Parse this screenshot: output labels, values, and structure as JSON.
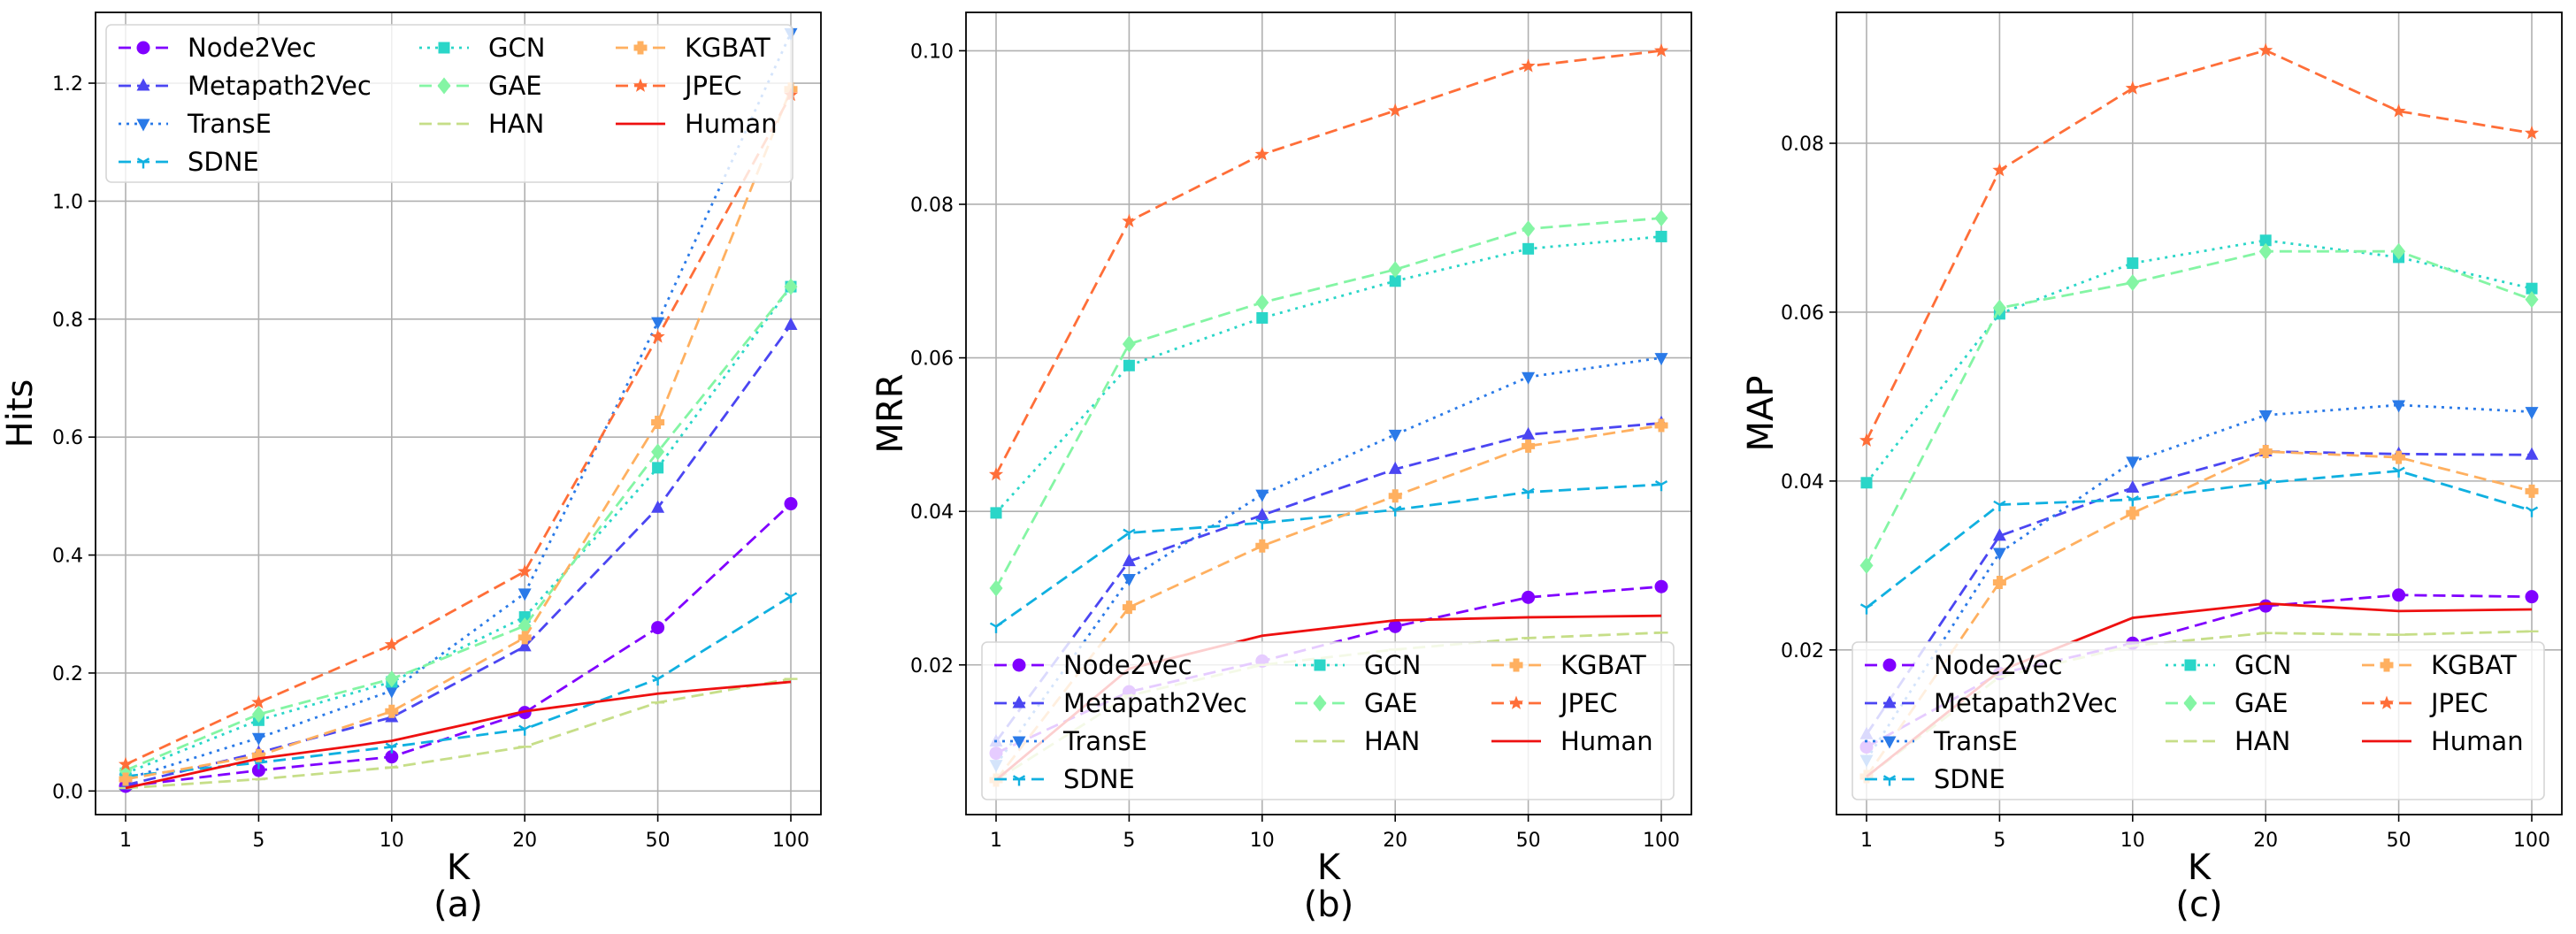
{
  "chart_data": [
    {
      "type": "line",
      "panel_label": "(a)",
      "xlabel": "K",
      "ylabel": "Hits",
      "categories": [
        "1",
        "5",
        "10",
        "20",
        "50",
        "100"
      ],
      "ylim": [
        -0.04,
        1.32
      ],
      "yticks": [
        0.0,
        0.2,
        0.4,
        0.6,
        0.8,
        1.0,
        1.2
      ],
      "ytick_labels": [
        "0.0",
        "0.2",
        "0.4",
        "0.6",
        "0.8",
        "1.0",
        "1.2"
      ],
      "grid": true,
      "legend": "top-left",
      "series": [
        {
          "name": "Node2Vec",
          "values": [
            0.008,
            0.035,
            0.058,
            0.133,
            0.277,
            0.487
          ]
        },
        {
          "name": "Metapath2Vec",
          "values": [
            0.01,
            0.065,
            0.125,
            0.245,
            0.48,
            0.79
          ]
        },
        {
          "name": "TransE",
          "values": [
            0.02,
            0.09,
            0.17,
            0.335,
            0.795,
            1.285
          ]
        },
        {
          "name": "SDNE",
          "values": [
            0.025,
            0.048,
            0.075,
            0.105,
            0.19,
            0.33
          ]
        },
        {
          "name": "GCN",
          "values": [
            0.03,
            0.12,
            0.185,
            0.295,
            0.548,
            0.855
          ]
        },
        {
          "name": "GAE",
          "values": [
            0.035,
            0.13,
            0.19,
            0.28,
            0.575,
            0.855
          ]
        },
        {
          "name": "HAN",
          "values": [
            0.005,
            0.02,
            0.04,
            0.075,
            0.15,
            0.19
          ]
        },
        {
          "name": "KGBAT",
          "values": [
            0.02,
            0.06,
            0.135,
            0.26,
            0.625,
            1.19
          ]
        },
        {
          "name": "JPEC",
          "values": [
            0.045,
            0.15,
            0.248,
            0.372,
            0.77,
            1.18
          ]
        },
        {
          "name": "Human",
          "values": [
            0.005,
            0.055,
            0.085,
            0.135,
            0.165,
            0.185
          ]
        }
      ]
    },
    {
      "type": "line",
      "panel_label": "(b)",
      "xlabel": "K",
      "ylabel": "MRR",
      "categories": [
        "1",
        "5",
        "10",
        "20",
        "50",
        "100"
      ],
      "ylim": [
        0.0005,
        0.105
      ],
      "yticks": [
        0.02,
        0.04,
        0.06,
        0.08,
        0.1
      ],
      "ytick_labels": [
        "0.02",
        "0.04",
        "0.06",
        "0.08",
        "0.10"
      ],
      "grid": true,
      "legend": "lower-right",
      "series": [
        {
          "name": "Node2Vec",
          "values": [
            0.0085,
            0.0165,
            0.0205,
            0.025,
            0.0288,
            0.0302
          ]
        },
        {
          "name": "Metapath2Vec",
          "values": [
            0.01,
            0.0335,
            0.0395,
            0.0455,
            0.05,
            0.0515
          ]
        },
        {
          "name": "TransE",
          "values": [
            0.007,
            0.0312,
            0.0422,
            0.05,
            0.0575,
            0.06
          ]
        },
        {
          "name": "SDNE",
          "values": [
            0.025,
            0.0372,
            0.0385,
            0.0402,
            0.0425,
            0.0435
          ]
        },
        {
          "name": "GCN",
          "values": [
            0.0398,
            0.059,
            0.0652,
            0.07,
            0.0742,
            0.0758
          ]
        },
        {
          "name": "GAE",
          "values": [
            0.03,
            0.0618,
            0.0672,
            0.0715,
            0.0768,
            0.0782
          ]
        },
        {
          "name": "HAN",
          "values": [
            0.005,
            0.016,
            0.02,
            0.022,
            0.0235,
            0.0242
          ]
        },
        {
          "name": "KGBAT",
          "values": [
            0.005,
            0.0275,
            0.0355,
            0.042,
            0.0485,
            0.0512
          ]
        },
        {
          "name": "JPEC",
          "values": [
            0.0448,
            0.0778,
            0.0865,
            0.0922,
            0.098,
            0.1
          ]
        },
        {
          "name": "Human",
          "values": [
            0.005,
            0.0195,
            0.0238,
            0.0258,
            0.0262,
            0.0264
          ]
        }
      ]
    },
    {
      "type": "line",
      "panel_label": "(c)",
      "xlabel": "K",
      "ylabel": "MAP",
      "categories": [
        "1",
        "5",
        "10",
        "20",
        "50",
        "100"
      ],
      "ylim": [
        0.0005,
        0.0955
      ],
      "yticks": [
        0.02,
        0.04,
        0.06,
        0.08
      ],
      "ytick_labels": [
        "0.02",
        "0.04",
        "0.06",
        "0.08"
      ],
      "grid": true,
      "legend": "lower-right",
      "series": [
        {
          "name": "Node2Vec",
          "values": [
            0.0085,
            0.0172,
            0.0208,
            0.0252,
            0.0265,
            0.0263
          ]
        },
        {
          "name": "Metapath2Vec",
          "values": [
            0.01,
            0.0335,
            0.0392,
            0.0435,
            0.0432,
            0.0431
          ]
        },
        {
          "name": "TransE",
          "values": [
            0.007,
            0.0315,
            0.0423,
            0.0478,
            0.049,
            0.0482
          ]
        },
        {
          "name": "SDNE",
          "values": [
            0.025,
            0.0372,
            0.0378,
            0.0398,
            0.0412,
            0.0365
          ]
        },
        {
          "name": "GCN",
          "values": [
            0.0398,
            0.0598,
            0.0658,
            0.0685,
            0.0665,
            0.0628
          ]
        },
        {
          "name": "GAE",
          "values": [
            0.03,
            0.0605,
            0.0635,
            0.0672,
            0.0672,
            0.0615
          ]
        },
        {
          "name": "HAN",
          "values": [
            0.005,
            0.0168,
            0.0205,
            0.022,
            0.0218,
            0.0222
          ]
        },
        {
          "name": "KGBAT",
          "values": [
            0.005,
            0.028,
            0.0362,
            0.0435,
            0.0428,
            0.0388
          ]
        },
        {
          "name": "JPEC",
          "values": [
            0.0448,
            0.0768,
            0.0865,
            0.091,
            0.0838,
            0.0812
          ]
        },
        {
          "name": "Human",
          "values": [
            0.005,
            0.0175,
            0.0238,
            0.0255,
            0.0246,
            0.0248
          ]
        }
      ]
    }
  ],
  "series_styles": [
    {
      "name": "Node2Vec",
      "color": "#8000ff",
      "dash": "14 7",
      "marker": "circle"
    },
    {
      "name": "Metapath2Vec",
      "color": "#4b46f2",
      "dash": "14 7",
      "marker": "triangle-up"
    },
    {
      "name": "TransE",
      "color": "#2a7ae8",
      "dash": "3 6",
      "marker": "triangle-down"
    },
    {
      "name": "SDNE",
      "color": "#10b0e0",
      "dash": "14 7",
      "marker": "tri"
    },
    {
      "name": "GCN",
      "color": "#2ad6c8",
      "dash": "3 6",
      "marker": "square"
    },
    {
      "name": "GAE",
      "color": "#84f5a4",
      "dash": "14 7",
      "marker": "diamond"
    },
    {
      "name": "HAN",
      "color": "#c6de88",
      "dash": "14 7",
      "marker": "hline"
    },
    {
      "name": "KGBAT",
      "color": "#ffb060",
      "dash": "14 7",
      "marker": "plus-filled"
    },
    {
      "name": "JPEC",
      "color": "#ff6e38",
      "dash": "14 7",
      "marker": "star"
    },
    {
      "name": "Human",
      "color": "#ee1010",
      "dash": "",
      "marker": "none"
    }
  ]
}
